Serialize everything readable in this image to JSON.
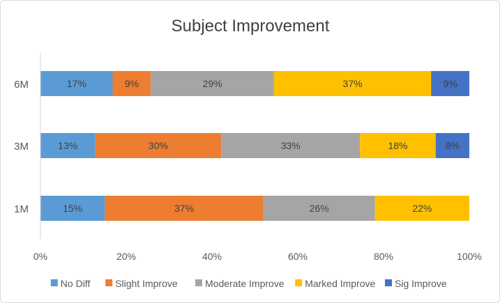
{
  "chart_data": {
    "type": "bar",
    "orientation": "horizontal",
    "stacked": "percent",
    "title": "Subject Improvement",
    "xlabel": "",
    "ylabel": "",
    "categories": [
      "6M",
      "3M",
      "1M"
    ],
    "xlim": [
      0,
      100
    ],
    "xticks": [
      "0%",
      "20%",
      "40%",
      "60%",
      "80%",
      "100%"
    ],
    "grid": false,
    "legend_position": "bottom",
    "series": [
      {
        "name": "No Diff",
        "color": "#5B9BD5",
        "values": [
          17,
          13,
          15
        ],
        "labels": [
          "17%",
          "13%",
          "15%"
        ]
      },
      {
        "name": "Slight Improve",
        "color": "#ED7D31",
        "values": [
          9,
          30,
          37
        ],
        "labels": [
          "9%",
          "30%",
          "37%"
        ]
      },
      {
        "name": "Moderate Improve",
        "color": "#A5A5A5",
        "values": [
          29,
          33,
          26
        ],
        "labels": [
          "29%",
          "33%",
          "26%"
        ]
      },
      {
        "name": "Marked Improve",
        "color": "#FFC000",
        "values": [
          37,
          18,
          22
        ],
        "labels": [
          "37%",
          "18%",
          "22%"
        ]
      },
      {
        "name": "Sig Improve",
        "color": "#4472C4",
        "values": [
          9,
          8,
          0
        ],
        "labels": [
          "9%",
          "8%",
          ""
        ]
      }
    ]
  }
}
